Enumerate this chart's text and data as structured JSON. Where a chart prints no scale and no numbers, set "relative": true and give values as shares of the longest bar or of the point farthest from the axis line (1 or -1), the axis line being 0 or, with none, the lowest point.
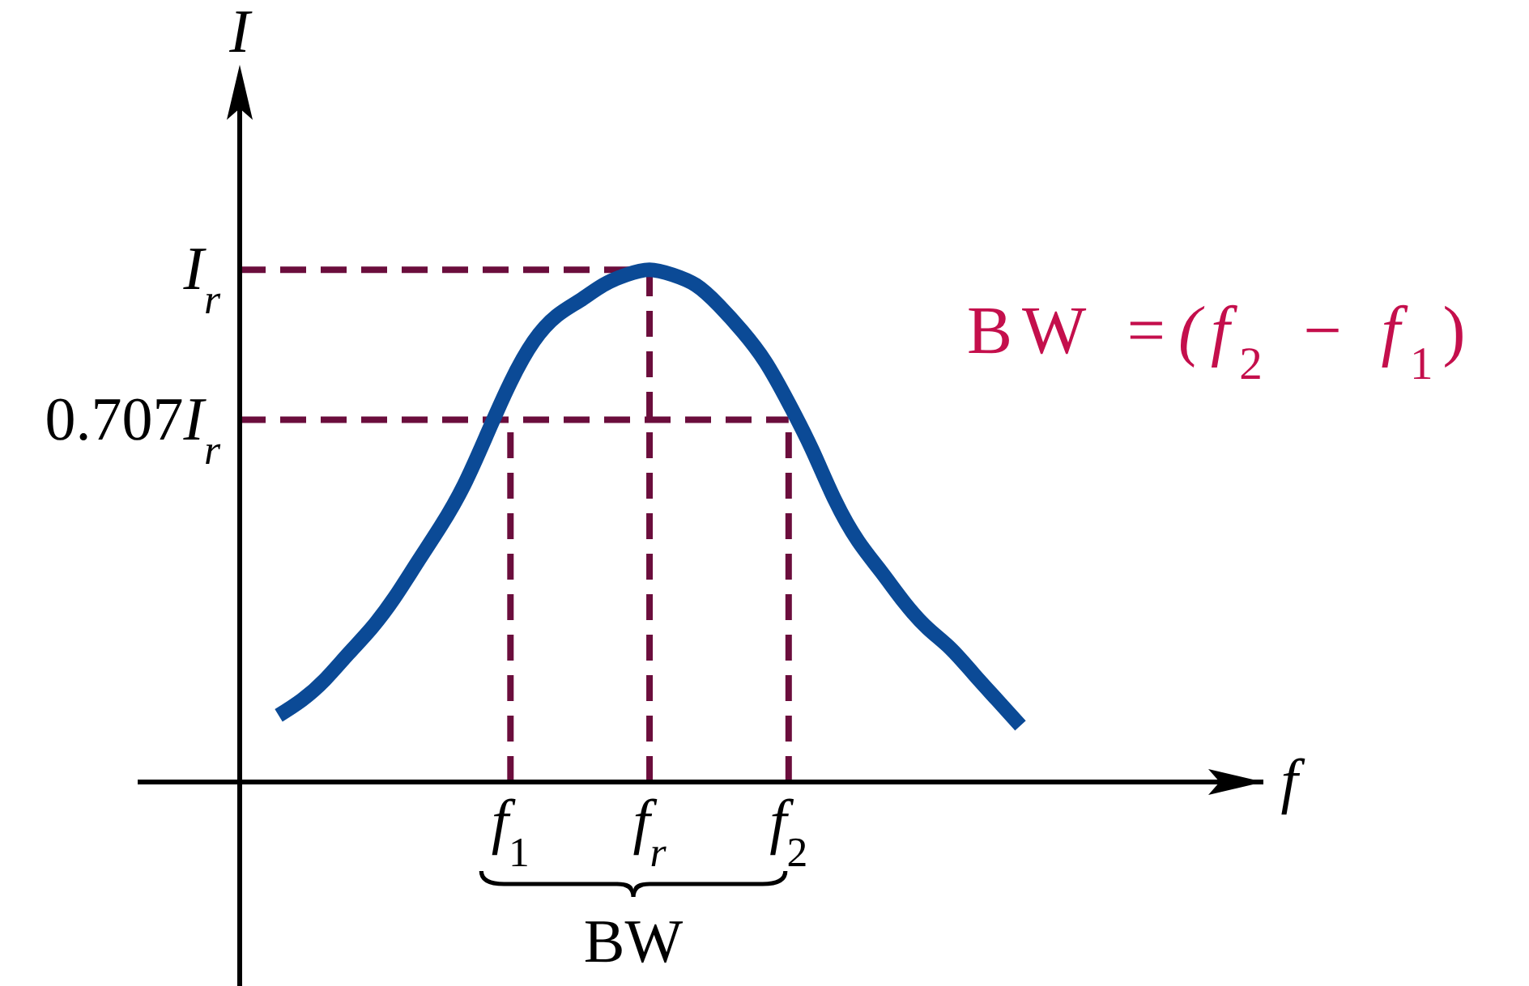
{
  "chart_data": {
    "type": "line",
    "relative": true,
    "xlabel": "f",
    "ylabel": "I",
    "categories": [
      null,
      null,
      null,
      null,
      null,
      null,
      null,
      null,
      null,
      null,
      "f$_{1}$",
      null,
      null,
      null,
      null,
      null,
      "f$_{r}$",
      null,
      null,
      null,
      null,
      null,
      "f$_{2}$",
      null,
      null,
      null,
      null,
      null,
      null,
      null,
      null,
      null,
      null
    ],
    "series": [
      {
        "color": "#0b4a96",
        "values": [
          0.13,
          0.16,
          0.2,
          0.25,
          0.3,
          0.36,
          0.43,
          0.5,
          0.58,
          0.68,
          0.78,
          0.86,
          0.91,
          0.94,
          0.97,
          0.99,
          1.0,
          0.99,
          0.97,
          0.93,
          0.88,
          0.82,
          0.74,
          0.65,
          0.55,
          0.47,
          0.41,
          0.35,
          0.3,
          0.26,
          0.21,
          0.16,
          0.11
        ]
      }
    ],
    "ref_lines": [
      {
        "axis": "y",
        "value": 1,
        "label": "I$_{r}$",
        "color": "#6b0d3c",
        "line_style": "dashed"
      },
      {
        "axis": "y",
        "value": 0.707,
        "label": "0.707I$_{r}$",
        "color": "#6b0d3c",
        "line_style": "dashed"
      },
      {
        "axis": "x",
        "value": "f$_{1}$",
        "color": "#6b0d3c",
        "line_style": "dashed"
      },
      {
        "axis": "x",
        "value": "f$_{r}$",
        "color": "#6b0d3c",
        "line_style": "dashed"
      },
      {
        "axis": "x",
        "value": "f$_{2}$",
        "color": "#6b0d3c",
        "line_style": "dashed"
      }
    ],
    "annotations": [
      "BW =(f$_{2}$ − f$_{1}$)",
      "BW"
    ],
    "marker": "none",
    "line_style": "solid"
  }
}
